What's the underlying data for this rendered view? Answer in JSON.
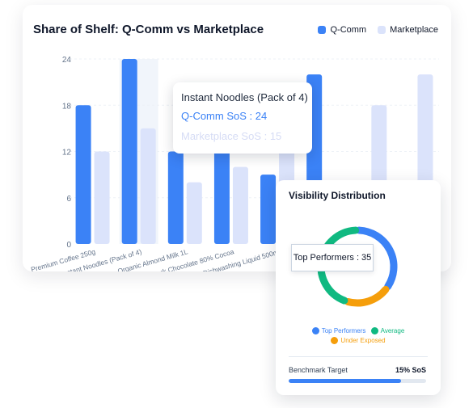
{
  "chart_data": {
    "type": "bar",
    "title": "Share of Shelf: Q-Comm vs Marketplace",
    "categories": [
      "Premium Coffee 250g",
      "Instant Noodles (Pack of 4)",
      "Organic Almond Milk 1L",
      "Dark Chocolate 80% Cocoa",
      "Dishwashing Liquid 500ml",
      "",
      "",
      ""
    ],
    "series": [
      {
        "name": "Q-Comm",
        "values": [
          18,
          24,
          12,
          17,
          9,
          22,
          null,
          null
        ]
      },
      {
        "name": "Marketplace",
        "values": [
          12,
          15,
          8,
          10,
          14,
          null,
          18,
          22
        ]
      }
    ],
    "y_ticks": [
      "0",
      "6",
      "12",
      "18",
      "24"
    ],
    "ylim": [
      0,
      24
    ],
    "grid": true,
    "legend_position": "top-right",
    "colors": {
      "qcomm": "#3b82f6",
      "marketplace": "#dbe3fb"
    }
  },
  "tooltip": {
    "title": "Instant Noodles (Pack of 4)",
    "qcomm_line": "Q-Comm SoS : 24",
    "marketplace_line": "Marketplace SoS : 15"
  },
  "visibility": {
    "title": "Visibility Distribution",
    "tooltip": "Top Performers : 35",
    "segments": [
      {
        "label": "Top Performers",
        "value": 35,
        "color": "#3b82f6"
      },
      {
        "label": "Under Exposed",
        "value": 20,
        "color": "#f59e0b"
      },
      {
        "label": "Average",
        "value": 45,
        "color": "#10b981"
      }
    ],
    "benchmark": {
      "label": "Benchmark Target",
      "value": "15% SoS",
      "progress": 0.82
    }
  }
}
